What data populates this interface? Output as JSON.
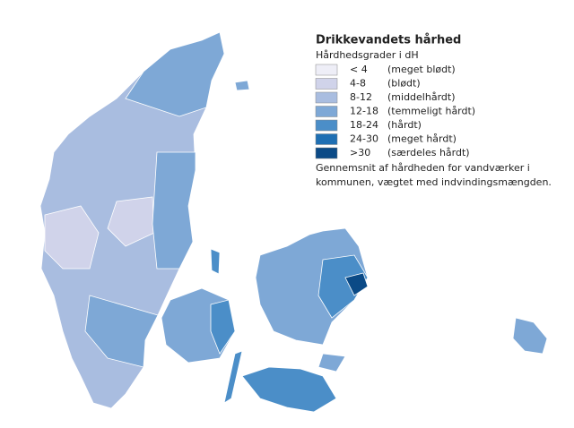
{
  "title": "Drikkevandets hårhed",
  "subtitle": "Hårdhedsgrader i dH",
  "legend": [
    {
      "range": "< 4",
      "label": "(meget blødt)",
      "color": "#eeeef7"
    },
    {
      "range": "4-8",
      "label": "(blødt)",
      "color": "#d0d3ea"
    },
    {
      "range": "8-12",
      "label": "(middelhårdt)",
      "color": "#a9bde0"
    },
    {
      "range": "12-18",
      "label": "(temmeligt hårdt)",
      "color": "#7ea8d6"
    },
    {
      "range": "18-24",
      "label": "(hårdt)",
      "color": "#4b8ec8"
    },
    {
      "range": "24-30",
      "label": "(meget hårdt)",
      "color": "#1f6fb3"
    },
    {
      "range": ">30",
      "label": "(særdeles hårdt)",
      "color": "#0b4a86"
    }
  ],
  "note": [
    "Gennemsnit af hårdheden for vandværker i",
    "kommunen, vægtet med indvindingsmængden."
  ]
}
